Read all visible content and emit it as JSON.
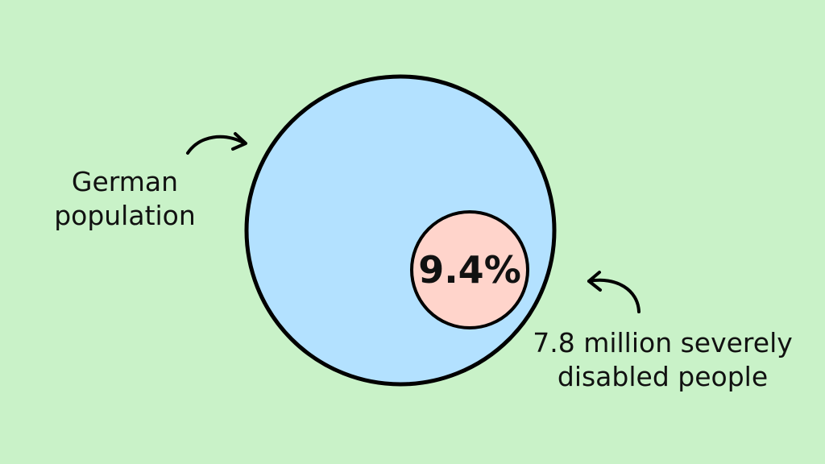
{
  "labels": {
    "outer": "German population",
    "inner": "7.8 million severely disabled people",
    "percentage": "9.4%"
  },
  "colors": {
    "background": "#c9f2c8",
    "outer_circle": "#b3e1ff",
    "inner_circle": "#ffd4cb",
    "stroke": "#000000"
  }
}
